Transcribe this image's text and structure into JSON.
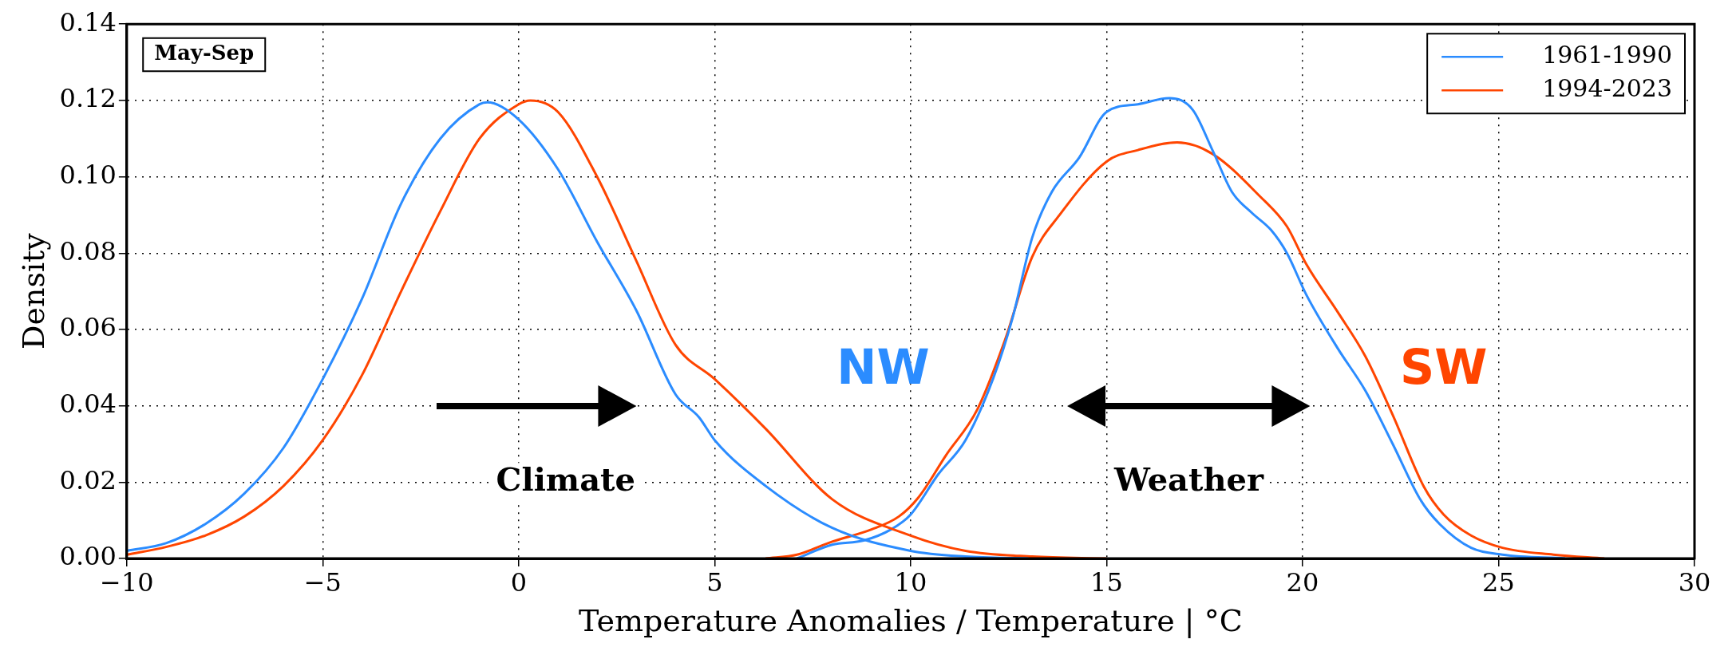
{
  "chart_data": {
    "type": "line",
    "xlabel": "Temperature Anomalies / Temperature | °C",
    "ylabel": "Density",
    "annotations": [
      "May-Sep",
      "Climate",
      "Weather",
      "NW",
      "SW"
    ],
    "series": [
      {
        "name": "1961-1990",
        "color": "#2b8cff",
        "x": [
          -10,
          -9,
          -8,
          -7,
          -6,
          -5,
          -4,
          -3,
          -2,
          -1,
          -0.8,
          0,
          1,
          2,
          3,
          4,
          4.6,
          5,
          6.3,
          8,
          10,
          11.4,
          13
        ],
        "values": [
          0.002,
          0.004,
          0.009,
          0.017,
          0.029,
          0.047,
          0.068,
          0.093,
          0.11,
          0.119,
          0.1195,
          0.115,
          0.102,
          0.083,
          0.065,
          0.043,
          0.037,
          0.031,
          0.019,
          0.008,
          0.002,
          0.0005,
          0
        ]
      },
      {
        "name": "1994-2023",
        "color": "#ff4500",
        "x": [
          -10,
          -9,
          -8,
          -7,
          -6,
          -5,
          -4,
          -3,
          -2,
          -1,
          0,
          0.3,
          1,
          2,
          3,
          4,
          5,
          6.3,
          8,
          10,
          11.4,
          13.1,
          15
        ],
        "values": [
          0.001,
          0.003,
          0.006,
          0.011,
          0.019,
          0.031,
          0.048,
          0.07,
          0.091,
          0.11,
          0.119,
          0.12,
          0.117,
          0.1,
          0.078,
          0.056,
          0.047,
          0.034,
          0.0155,
          0.006,
          0.002,
          0.0005,
          0
        ]
      },
      {
        "color": "#2b8cff",
        "x": [
          7.1,
          8,
          8.8,
          9.5,
          10,
          10.7,
          11.4,
          12.1,
          12.6,
          13.1,
          13.6,
          14.3,
          15,
          15.8,
          16.6,
          17.2,
          17.7,
          18.2,
          18.7,
          19.2,
          19.6,
          20.1,
          20.9,
          21.6,
          22.3,
          23,
          23.5,
          24.3,
          25.1,
          26.7
        ],
        "values": [
          0,
          0.0036,
          0.0047,
          0.0076,
          0.0115,
          0.022,
          0.031,
          0.047,
          0.063,
          0.084,
          0.096,
          0.105,
          0.117,
          0.119,
          0.1206,
          0.1175,
          0.107,
          0.096,
          0.0906,
          0.086,
          0.08,
          0.069,
          0.055,
          0.044,
          0.03,
          0.0155,
          0.009,
          0.0028,
          0.001,
          0
        ]
      },
      {
        "color": "#ff4500",
        "x": [
          6.3,
          7.1,
          8,
          9,
          9.7,
          10.2,
          10.9,
          11.7,
          12.4,
          13.1,
          13.8,
          15,
          15.8,
          16.8,
          17.7,
          18.9,
          19.6,
          20.1,
          20.9,
          21.6,
          22.3,
          23.1,
          23.6,
          24.3,
          25.1,
          26.4,
          27.7
        ],
        "values": [
          0,
          0.001,
          0.0044,
          0.0076,
          0.011,
          0.016,
          0.027,
          0.039,
          0.057,
          0.079,
          0.09,
          0.104,
          0.107,
          0.109,
          0.106,
          0.095,
          0.087,
          0.077,
          0.0645,
          0.053,
          0.0376,
          0.0187,
          0.0115,
          0.006,
          0.0028,
          0.001,
          0
        ]
      }
    ],
    "xlim": [
      -10,
      30
    ],
    "xticks": [
      {
        "value": -10,
        "label": "−10"
      },
      {
        "value": -5,
        "label": "−5"
      },
      0,
      5,
      10,
      15,
      20,
      25,
      30
    ],
    "ylim": [
      0,
      0.14
    ],
    "yticks": [
      {
        "value": 0,
        "label": "0.00"
      },
      0.02,
      0.04,
      0.06,
      0.08,
      {
        "value": 0.1,
        "label": "0.10"
      },
      0.12,
      0.14
    ],
    "grid": true,
    "legend": "top right",
    "marker": "none",
    "line_style": "solid"
  }
}
